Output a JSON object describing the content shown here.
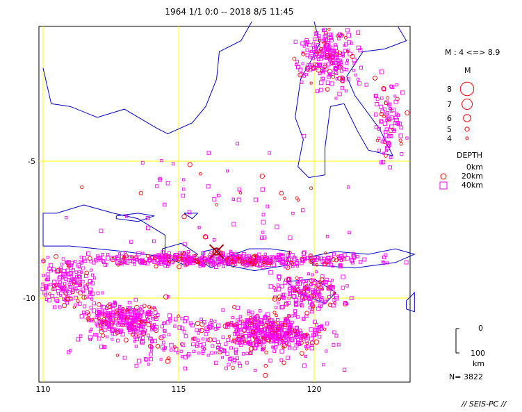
{
  "title": "1964 1/1 0:0 -- 2018 8/5 11:45",
  "map": {
    "x_ticks": [
      {
        "lon": 110,
        "label": "110"
      },
      {
        "lon": 115,
        "label": "115"
      },
      {
        "lon": 120,
        "label": "120"
      }
    ],
    "y_ticks": [
      {
        "lat": -5,
        "label": "-5"
      },
      {
        "lat": -10,
        "label": "-10"
      }
    ],
    "lon_range": [
      110,
      123.7
    ],
    "lat_range": [
      -13.1,
      0.1
    ],
    "grid_color": "#ffff00",
    "coast_color": "#0000cc",
    "event_color": "#ff00ff",
    "shallow_color": "#ff0000",
    "epicenter": {
      "lon": 116.4,
      "lat": -8.3,
      "color": "#aa0000"
    }
  },
  "legend": {
    "magnitude_range": "M : 4 <=> 8.9",
    "magnitude_title": "M",
    "magnitudes": [
      {
        "label": "8",
        "m": 8
      },
      {
        "label": "7",
        "m": 7
      },
      {
        "label": "6",
        "m": 6
      },
      {
        "label": "5",
        "m": 5
      },
      {
        "label": "4",
        "m": 4
      }
    ],
    "depth_title": "DEPTH",
    "depths": [
      {
        "label": "0km",
        "shape": "none"
      },
      {
        "label": "20km",
        "shape": "circle"
      },
      {
        "label": "40km",
        "shape": "square"
      }
    ],
    "depth_scale_top": "0",
    "depth_scale_bottom": "100",
    "depth_scale_unit": "km",
    "count": "N= 3822"
  },
  "credit": "// SEIS-PC //"
}
